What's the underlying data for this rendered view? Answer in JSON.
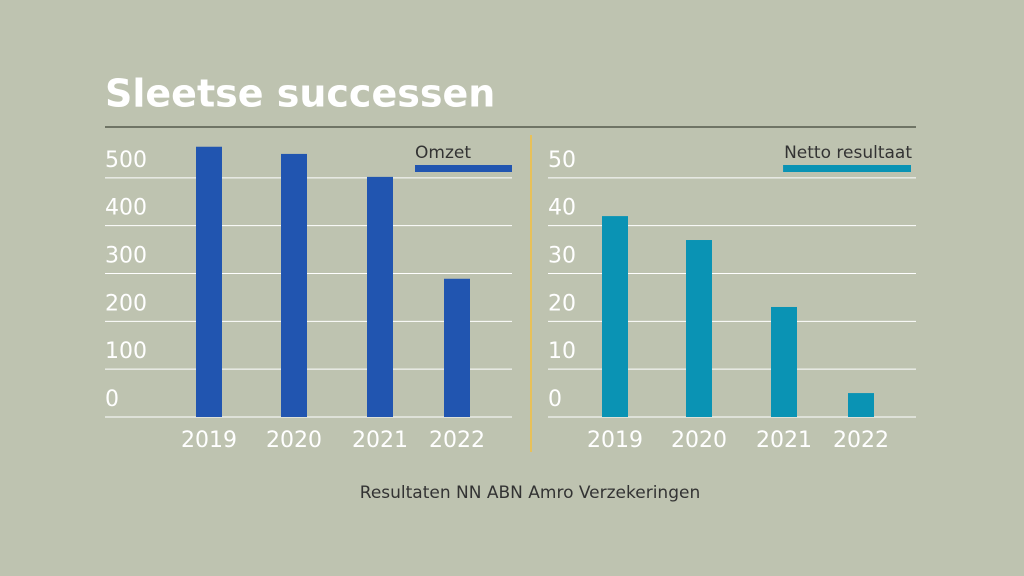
{
  "title": "Sleetse successen",
  "caption": "Resultaten NN ABN Amro Verzekeringen",
  "chart_data": [
    {
      "type": "bar",
      "categories": [
        "2019",
        "2020",
        "2021",
        "2022"
      ],
      "series": [
        {
          "name": "Omzet",
          "color": "#2155b0",
          "values": [
            565,
            550,
            502,
            289
          ]
        }
      ],
      "ylim": [
        0,
        600
      ],
      "yticks": [
        0,
        100,
        200,
        300,
        400,
        500
      ],
      "grid": true
    },
    {
      "type": "bar",
      "categories": [
        "2019",
        "2020",
        "2021",
        "2022"
      ],
      "series": [
        {
          "name": "Netto resultaat",
          "color": "#0a93b4",
          "values": [
            42,
            37,
            23,
            5
          ]
        }
      ],
      "ylim": [
        0,
        60
      ],
      "yticks": [
        0,
        10,
        20,
        30,
        40,
        50
      ],
      "grid": true
    }
  ]
}
